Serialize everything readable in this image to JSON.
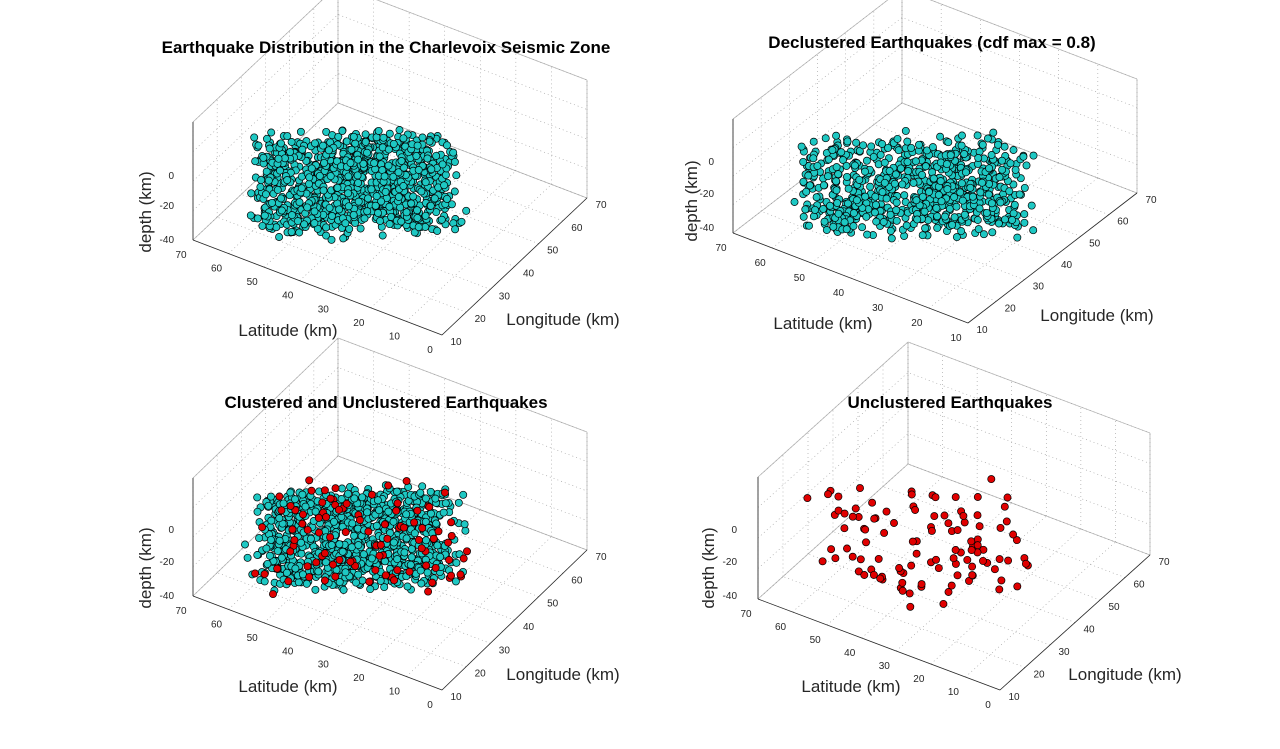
{
  "figure": {
    "colors": {
      "clustered": "#1ec8c3",
      "unclustered": "#e00000",
      "marker_edge": "#000000",
      "grid": "#b8b8b8",
      "grid_dots": "#9a9a9a"
    }
  },
  "chart_data": [
    {
      "type": "scatter",
      "title": "Earthquake Distribution in the Charlevoix Seismic Zone",
      "xlabel": "Longitude (km)",
      "ylabel": "Latitude (km)",
      "zlabel": "depth (km)",
      "x_ticks": [
        "10",
        "20",
        "30",
        "40",
        "50",
        "60",
        "70"
      ],
      "y_ticks": [
        "0",
        "10",
        "20",
        "30",
        "40",
        "50",
        "60",
        "70"
      ],
      "z_ticks": [
        "0",
        "-20",
        "-40"
      ],
      "xlim": [
        10,
        70
      ],
      "ylim": [
        0,
        70
      ],
      "zlim": [
        -40,
        0
      ],
      "grid": true,
      "series": [
        {
          "color": "clustered",
          "count": 1100,
          "x_range": [
            12,
            45
          ],
          "y_range": [
            18,
            58
          ],
          "z_range": [
            -35,
            -5
          ]
        }
      ]
    },
    {
      "type": "scatter",
      "title": "Declustered Earthquakes (cdf max = 0.8)",
      "xlabel": "Longitude (km)",
      "ylabel": "Latitude (km)",
      "zlabel": "depth (km)",
      "x_ticks": [
        "10",
        "20",
        "30",
        "40",
        "50",
        "60",
        "70"
      ],
      "y_ticks": [
        "10",
        "20",
        "30",
        "40",
        "50",
        "60",
        "70"
      ],
      "z_ticks": [
        "0",
        "-20",
        "-40"
      ],
      "xlim": [
        10,
        70
      ],
      "ylim": [
        10,
        70
      ],
      "zlim": [
        -40,
        0
      ],
      "grid": true,
      "series": [
        {
          "color": "clustered",
          "count": 800,
          "x_range": [
            12,
            45
          ],
          "y_range": [
            18,
            58
          ],
          "z_range": [
            -35,
            -5
          ]
        }
      ]
    },
    {
      "type": "scatter",
      "title": "Clustered and Unclustered Earthquakes",
      "xlabel": "Longitude (km)",
      "ylabel": "Latitude (km)",
      "zlabel": "depth (km)",
      "x_ticks": [
        "10",
        "20",
        "30",
        "40",
        "50",
        "60",
        "70"
      ],
      "y_ticks": [
        "0",
        "10",
        "20",
        "30",
        "40",
        "50",
        "60",
        "70"
      ],
      "z_ticks": [
        "0",
        "-20",
        "-40"
      ],
      "xlim": [
        10,
        70
      ],
      "ylim": [
        0,
        70
      ],
      "zlim": [
        -40,
        0
      ],
      "grid": true,
      "series": [
        {
          "color": "clustered",
          "count": 1000,
          "x_range": [
            12,
            45
          ],
          "y_range": [
            18,
            58
          ],
          "z_range": [
            -35,
            -5
          ]
        },
        {
          "color": "unclustered",
          "count": 95,
          "x_range": [
            12,
            48
          ],
          "y_range": [
            15,
            58
          ],
          "z_range": [
            -38,
            -3
          ]
        }
      ]
    },
    {
      "type": "scatter",
      "title": "Unclustered Earthquakes",
      "xlabel": "Longitude (km)",
      "ylabel": "Latitude (km)",
      "zlabel": "depth (km)",
      "x_ticks": [
        "10",
        "20",
        "30",
        "40",
        "50",
        "60",
        "70"
      ],
      "y_ticks": [
        "0",
        "10",
        "20",
        "30",
        "40",
        "50",
        "60",
        "70"
      ],
      "z_ticks": [
        "0",
        "-20",
        "-40"
      ],
      "xlim": [
        10,
        70
      ],
      "ylim": [
        0,
        70
      ],
      "zlim": [
        -40,
        0
      ],
      "grid": true,
      "series": [
        {
          "color": "unclustered",
          "count": 110,
          "x_range": [
            12,
            48
          ],
          "y_range": [
            15,
            58
          ],
          "z_range": [
            -38,
            -3
          ]
        }
      ]
    }
  ]
}
